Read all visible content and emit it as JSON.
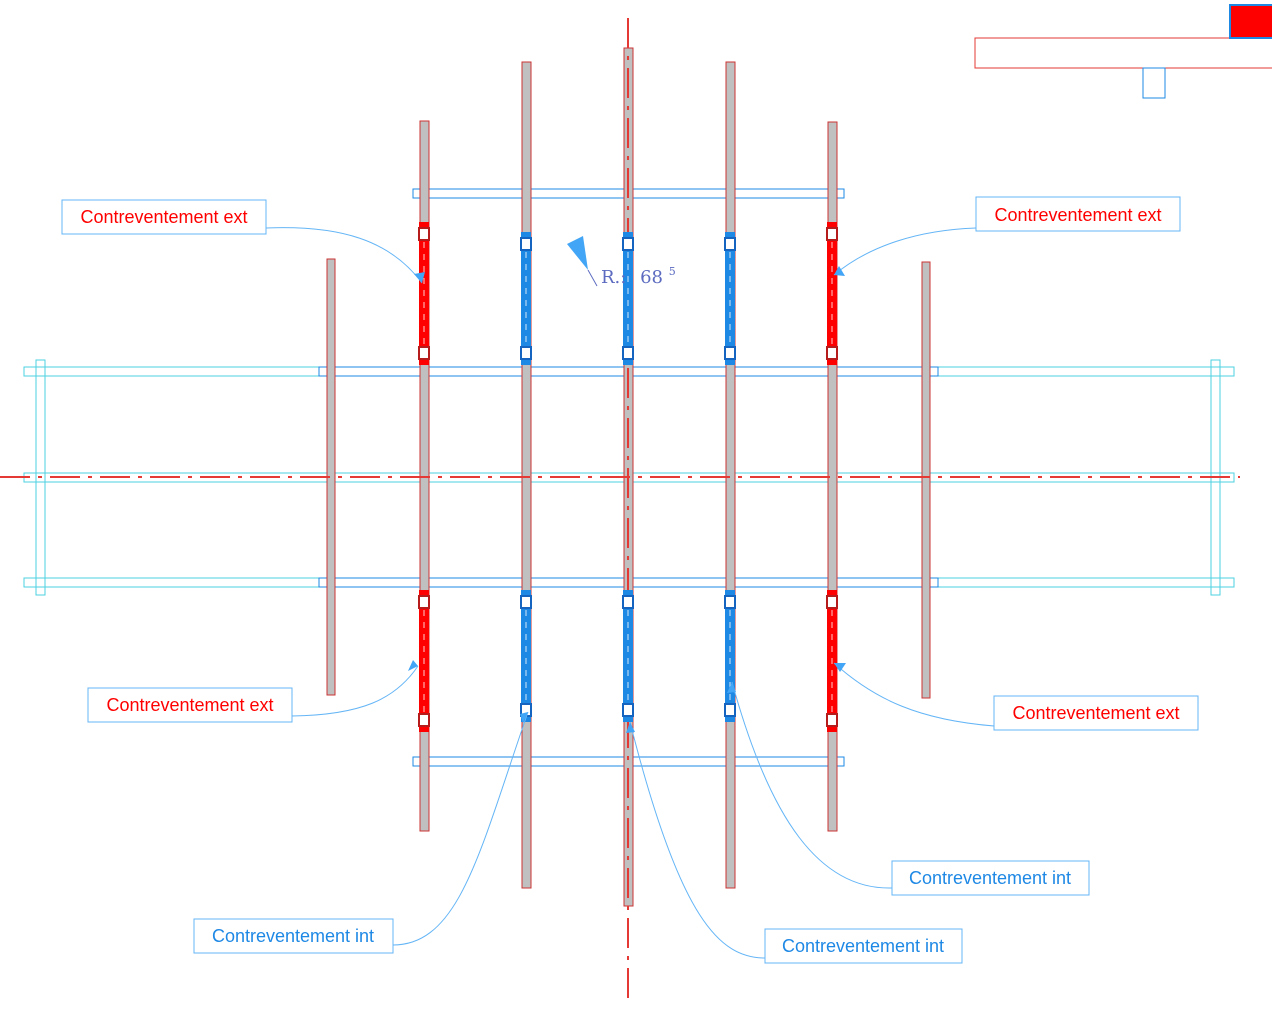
{
  "labels": {
    "ext_top_left": "Contreventement ext",
    "ext_top_right": "Contreventement ext",
    "ext_bottom_left": "Contreventement ext",
    "ext_bottom_right": "Contreventement ext",
    "int_bottom_left": "Contreventement int",
    "int_bottom_center": "Contreventement int",
    "int_bottom_right": "Contreventement int"
  },
  "level_marker": {
    "prefix": "R.:",
    "value": "68",
    "superscript": "5"
  },
  "colors": {
    "exterior_bracing": "#ff0000",
    "interior_bracing": "#1e88e5",
    "leader": "#64b5f6",
    "beam_fill": "#c0c0c0",
    "beam_stroke": "#cc3333",
    "transverse": "#4dd0e1",
    "axis": "#e53935",
    "marker_text": "#5c6bc0"
  }
}
